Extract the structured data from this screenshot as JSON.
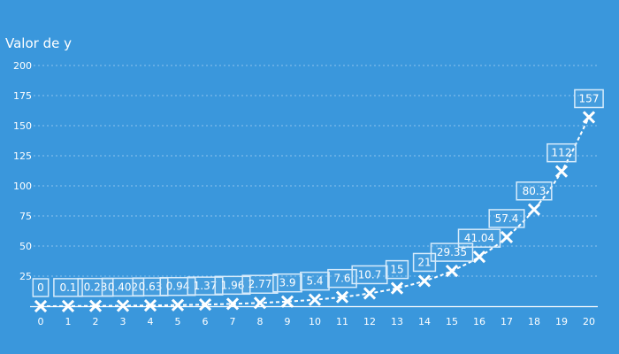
{
  "chart_data": {
    "type": "line",
    "title": "",
    "xlabel": "",
    "ylabel": "Valor de y",
    "x": [
      0,
      1,
      2,
      3,
      4,
      5,
      6,
      7,
      8,
      9,
      10,
      11,
      12,
      13,
      14,
      15,
      16,
      17,
      18,
      19,
      20
    ],
    "series": [
      {
        "values": [
          0,
          0.1,
          0.23,
          0.402,
          0.63,
          0.94,
          1.37,
          1.96,
          2.77,
          3.9,
          5.4,
          7.6,
          10.7,
          15,
          21,
          29.35,
          41.04,
          57.4,
          80.3,
          112,
          157
        ],
        "labels": [
          "0",
          "0.1",
          "0.23",
          "0.402",
          "0.63",
          "0.94",
          "1.37",
          "1.96",
          "2.77",
          "3.9",
          "5.4",
          "7.6",
          "10.7",
          "15",
          "21",
          "29.35",
          "41.04",
          "57.4",
          "80.3",
          "112",
          "157"
        ]
      }
    ],
    "xlim": [
      0,
      20
    ],
    "ylim": [
      0,
      200
    ],
    "yticks": [
      25,
      50,
      75,
      100,
      125,
      150,
      175,
      200
    ],
    "xticks": [
      0,
      1,
      2,
      3,
      4,
      5,
      6,
      7,
      8,
      9,
      10,
      11,
      12,
      13,
      14,
      15,
      16,
      17,
      18,
      19,
      20
    ],
    "grid": true,
    "colors": {
      "background": "#3a97dc",
      "line": "#ffffff",
      "grid": "#8ec3ee"
    }
  }
}
